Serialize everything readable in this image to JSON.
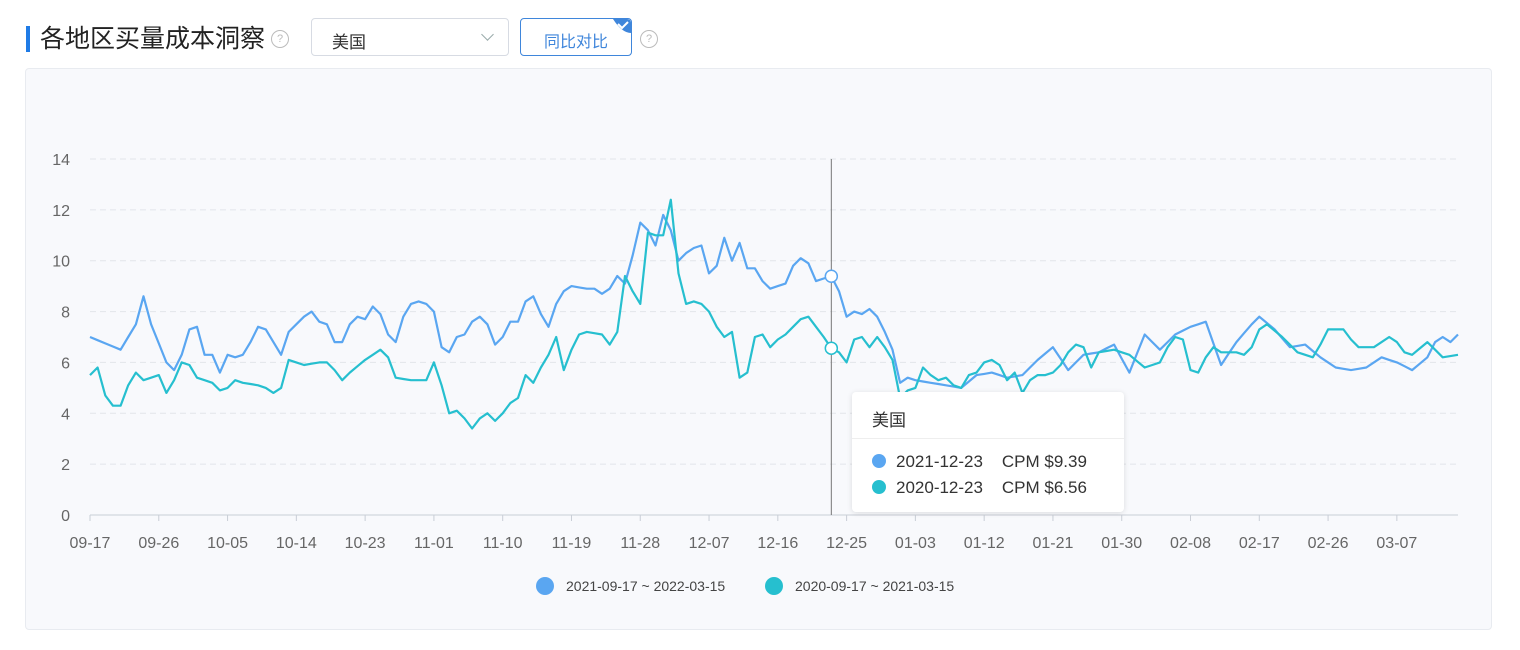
{
  "header": {
    "title": "各地区买量成本洞察",
    "region": "美国",
    "yoy_label": "同比对比"
  },
  "tooltip": {
    "title": "美国",
    "rows": [
      {
        "date": "2021-12-23",
        "metric": "CPM",
        "value": "$9.39",
        "color": "#5aa6f1"
      },
      {
        "date": "2020-12-23",
        "metric": "CPM",
        "value": "$6.56",
        "color": "#26bfcf"
      }
    ]
  },
  "chart_data": {
    "type": "line",
    "ylim": [
      0,
      14
    ],
    "yticks": [
      "0",
      "2",
      "4",
      "6",
      "8",
      "10",
      "12",
      "14"
    ],
    "xtick_labels": [
      "09-17",
      "09-26",
      "10-05",
      "10-14",
      "10-23",
      "11-01",
      "11-10",
      "11-19",
      "11-28",
      "12-07",
      "12-16",
      "12-25",
      "01-03",
      "01-12",
      "01-21",
      "01-30",
      "02-08",
      "02-17",
      "02-26",
      "03-07"
    ],
    "n_points": 180,
    "hover_index": 97,
    "series": [
      {
        "name": "2021-09-17 ~ 2022-03-15",
        "color": "#5aa6f1",
        "anchors": [
          [
            0,
            7.0
          ],
          [
            4,
            6.5
          ],
          [
            6,
            7.5
          ],
          [
            7,
            8.6
          ],
          [
            8,
            7.5
          ],
          [
            10,
            6.0
          ],
          [
            11,
            5.7
          ],
          [
            12,
            6.3
          ],
          [
            13,
            7.3
          ],
          [
            14,
            7.4
          ],
          [
            15,
            6.3
          ],
          [
            16,
            6.3
          ],
          [
            17,
            5.6
          ],
          [
            18,
            6.3
          ],
          [
            19,
            6.2
          ],
          [
            20,
            6.3
          ],
          [
            21,
            6.8
          ],
          [
            22,
            7.4
          ],
          [
            23,
            7.3
          ],
          [
            24,
            6.8
          ],
          [
            25,
            6.3
          ],
          [
            26,
            7.2
          ],
          [
            28,
            7.8
          ],
          [
            29,
            8.0
          ],
          [
            30,
            7.6
          ],
          [
            31,
            7.5
          ],
          [
            32,
            6.8
          ],
          [
            33,
            6.8
          ],
          [
            34,
            7.5
          ],
          [
            35,
            7.8
          ],
          [
            36,
            7.7
          ],
          [
            37,
            8.2
          ],
          [
            38,
            7.9
          ],
          [
            39,
            7.1
          ],
          [
            40,
            6.8
          ],
          [
            41,
            7.8
          ],
          [
            42,
            8.3
          ],
          [
            43,
            8.4
          ],
          [
            44,
            8.3
          ],
          [
            45,
            8.0
          ],
          [
            46,
            6.6
          ],
          [
            47,
            6.4
          ],
          [
            48,
            7.0
          ],
          [
            49,
            7.1
          ],
          [
            50,
            7.6
          ],
          [
            51,
            7.8
          ],
          [
            52,
            7.5
          ],
          [
            53,
            6.7
          ],
          [
            54,
            7.0
          ],
          [
            55,
            7.6
          ],
          [
            56,
            7.6
          ],
          [
            57,
            8.4
          ],
          [
            58,
            8.6
          ],
          [
            59,
            7.9
          ],
          [
            60,
            7.4
          ],
          [
            61,
            8.3
          ],
          [
            62,
            8.8
          ],
          [
            63,
            9.0
          ],
          [
            65,
            8.9
          ],
          [
            66,
            8.9
          ],
          [
            67,
            8.7
          ],
          [
            68,
            8.9
          ],
          [
            69,
            9.4
          ],
          [
            70,
            9.1
          ],
          [
            71,
            10.2
          ],
          [
            72,
            11.5
          ],
          [
            73,
            11.2
          ],
          [
            74,
            10.6
          ],
          [
            75,
            11.8
          ],
          [
            76,
            11.2
          ],
          [
            77,
            10.0
          ],
          [
            78,
            10.3
          ],
          [
            79,
            10.5
          ],
          [
            80,
            10.6
          ],
          [
            81,
            9.5
          ],
          [
            82,
            9.8
          ],
          [
            83,
            10.9
          ],
          [
            84,
            10.0
          ],
          [
            85,
            10.7
          ],
          [
            86,
            9.7
          ],
          [
            87,
            9.7
          ],
          [
            88,
            9.2
          ],
          [
            89,
            8.9
          ],
          [
            90,
            9.0
          ],
          [
            91,
            9.1
          ],
          [
            92,
            9.8
          ],
          [
            93,
            10.1
          ],
          [
            94,
            9.9
          ],
          [
            95,
            9.2
          ],
          [
            96,
            9.3
          ],
          [
            97,
            9.39
          ],
          [
            98,
            8.8
          ],
          [
            99,
            7.8
          ],
          [
            100,
            8.0
          ],
          [
            101,
            7.9
          ],
          [
            102,
            8.1
          ],
          [
            103,
            7.8
          ],
          [
            104,
            7.2
          ],
          [
            105,
            6.5
          ],
          [
            106,
            5.2
          ],
          [
            107,
            5.4
          ],
          [
            108,
            5.3
          ],
          [
            110,
            5.2
          ],
          [
            112,
            5.1
          ],
          [
            114,
            5.0
          ],
          [
            116,
            5.5
          ],
          [
            118,
            5.6
          ],
          [
            120,
            5.4
          ],
          [
            122,
            5.5
          ],
          [
            124,
            6.1
          ],
          [
            126,
            6.6
          ],
          [
            128,
            5.7
          ],
          [
            130,
            6.3
          ],
          [
            132,
            6.4
          ],
          [
            134,
            6.7
          ],
          [
            136,
            5.6
          ],
          [
            138,
            7.1
          ],
          [
            140,
            6.5
          ],
          [
            142,
            7.1
          ],
          [
            144,
            7.4
          ],
          [
            146,
            7.6
          ],
          [
            148,
            5.9
          ],
          [
            150,
            6.8
          ],
          [
            152,
            7.5
          ],
          [
            153,
            7.8
          ],
          [
            155,
            7.3
          ],
          [
            157,
            6.6
          ],
          [
            159,
            6.7
          ],
          [
            161,
            6.2
          ],
          [
            163,
            5.8
          ],
          [
            165,
            5.7
          ],
          [
            167,
            5.8
          ],
          [
            169,
            6.2
          ],
          [
            171,
            6.0
          ],
          [
            173,
            5.7
          ],
          [
            175,
            6.2
          ],
          [
            176,
            6.8
          ],
          [
            177,
            7.0
          ],
          [
            178,
            6.8
          ],
          [
            179,
            7.1
          ]
        ]
      },
      {
        "name": "2020-09-17 ~ 2021-03-15",
        "color": "#26bfcf",
        "anchors": [
          [
            0,
            5.5
          ],
          [
            1,
            5.8
          ],
          [
            2,
            4.7
          ],
          [
            3,
            4.3
          ],
          [
            4,
            4.3
          ],
          [
            5,
            5.1
          ],
          [
            6,
            5.6
          ],
          [
            7,
            5.3
          ],
          [
            9,
            5.5
          ],
          [
            10,
            4.8
          ],
          [
            11,
            5.3
          ],
          [
            12,
            6.0
          ],
          [
            13,
            5.9
          ],
          [
            14,
            5.4
          ],
          [
            15,
            5.3
          ],
          [
            16,
            5.2
          ],
          [
            17,
            4.9
          ],
          [
            18,
            5.0
          ],
          [
            19,
            5.3
          ],
          [
            20,
            5.2
          ],
          [
            22,
            5.1
          ],
          [
            23,
            5.0
          ],
          [
            24,
            4.8
          ],
          [
            25,
            5.0
          ],
          [
            26,
            6.1
          ],
          [
            27,
            6.0
          ],
          [
            28,
            5.9
          ],
          [
            30,
            6.0
          ],
          [
            31,
            6.0
          ],
          [
            32,
            5.7
          ],
          [
            33,
            5.3
          ],
          [
            34,
            5.6
          ],
          [
            36,
            6.1
          ],
          [
            37,
            6.3
          ],
          [
            38,
            6.5
          ],
          [
            39,
            6.2
          ],
          [
            40,
            5.4
          ],
          [
            42,
            5.3
          ],
          [
            43,
            5.3
          ],
          [
            44,
            5.3
          ],
          [
            45,
            6.0
          ],
          [
            46,
            5.1
          ],
          [
            47,
            4.0
          ],
          [
            48,
            4.1
          ],
          [
            49,
            3.8
          ],
          [
            50,
            3.4
          ],
          [
            51,
            3.8
          ],
          [
            52,
            4.0
          ],
          [
            53,
            3.7
          ],
          [
            54,
            4.0
          ],
          [
            55,
            4.4
          ],
          [
            56,
            4.6
          ],
          [
            57,
            5.5
          ],
          [
            58,
            5.2
          ],
          [
            59,
            5.8
          ],
          [
            60,
            6.3
          ],
          [
            61,
            7.0
          ],
          [
            62,
            5.7
          ],
          [
            63,
            6.5
          ],
          [
            64,
            7.1
          ],
          [
            65,
            7.2
          ],
          [
            67,
            7.1
          ],
          [
            68,
            6.7
          ],
          [
            69,
            7.2
          ],
          [
            70,
            9.4
          ],
          [
            71,
            8.8
          ],
          [
            72,
            8.3
          ],
          [
            73,
            11.1
          ],
          [
            74,
            11.0
          ],
          [
            75,
            11.0
          ],
          [
            76,
            12.4
          ],
          [
            77,
            9.5
          ],
          [
            78,
            8.3
          ],
          [
            79,
            8.4
          ],
          [
            80,
            8.3
          ],
          [
            81,
            8.0
          ],
          [
            82,
            7.4
          ],
          [
            83,
            7.0
          ],
          [
            84,
            7.2
          ],
          [
            85,
            5.4
          ],
          [
            86,
            5.6
          ],
          [
            87,
            7.0
          ],
          [
            88,
            7.1
          ],
          [
            89,
            6.6
          ],
          [
            90,
            6.9
          ],
          [
            91,
            7.1
          ],
          [
            92,
            7.4
          ],
          [
            93,
            7.7
          ],
          [
            94,
            7.8
          ],
          [
            95,
            7.4
          ],
          [
            96,
            7.0
          ],
          [
            97,
            6.56
          ],
          [
            98,
            6.4
          ],
          [
            99,
            6.0
          ],
          [
            100,
            6.9
          ],
          [
            101,
            7.0
          ],
          [
            102,
            6.6
          ],
          [
            103,
            7.0
          ],
          [
            104,
            6.6
          ],
          [
            105,
            6.1
          ],
          [
            106,
            4.6
          ],
          [
            107,
            4.9
          ],
          [
            108,
            5.0
          ],
          [
            109,
            5.8
          ],
          [
            110,
            5.5
          ],
          [
            111,
            5.3
          ],
          [
            112,
            5.4
          ],
          [
            113,
            5.1
          ],
          [
            114,
            5.0
          ],
          [
            115,
            5.5
          ],
          [
            116,
            5.6
          ],
          [
            117,
            6.0
          ],
          [
            118,
            6.1
          ],
          [
            119,
            5.9
          ],
          [
            120,
            5.3
          ],
          [
            121,
            5.6
          ],
          [
            122,
            4.8
          ],
          [
            123,
            5.3
          ],
          [
            124,
            5.5
          ],
          [
            125,
            5.5
          ],
          [
            126,
            5.6
          ],
          [
            127,
            5.9
          ],
          [
            128,
            6.4
          ],
          [
            129,
            6.7
          ],
          [
            130,
            6.6
          ],
          [
            131,
            5.8
          ],
          [
            132,
            6.4
          ],
          [
            134,
            6.5
          ],
          [
            136,
            6.3
          ],
          [
            138,
            5.8
          ],
          [
            140,
            6.0
          ],
          [
            141,
            6.6
          ],
          [
            142,
            7.0
          ],
          [
            143,
            6.9
          ],
          [
            144,
            5.7
          ],
          [
            145,
            5.6
          ],
          [
            146,
            6.2
          ],
          [
            147,
            6.6
          ],
          [
            148,
            6.4
          ],
          [
            150,
            6.4
          ],
          [
            151,
            6.3
          ],
          [
            152,
            6.6
          ],
          [
            153,
            7.3
          ],
          [
            154,
            7.5
          ],
          [
            156,
            7.0
          ],
          [
            158,
            6.4
          ],
          [
            160,
            6.2
          ],
          [
            161,
            6.7
          ],
          [
            162,
            7.3
          ],
          [
            164,
            7.3
          ],
          [
            165,
            6.9
          ],
          [
            166,
            6.6
          ],
          [
            168,
            6.6
          ],
          [
            170,
            7.0
          ],
          [
            171,
            6.8
          ],
          [
            172,
            6.4
          ],
          [
            173,
            6.3
          ],
          [
            175,
            6.8
          ],
          [
            176,
            6.5
          ],
          [
            177,
            6.2
          ],
          [
            179,
            6.3
          ]
        ]
      }
    ]
  }
}
